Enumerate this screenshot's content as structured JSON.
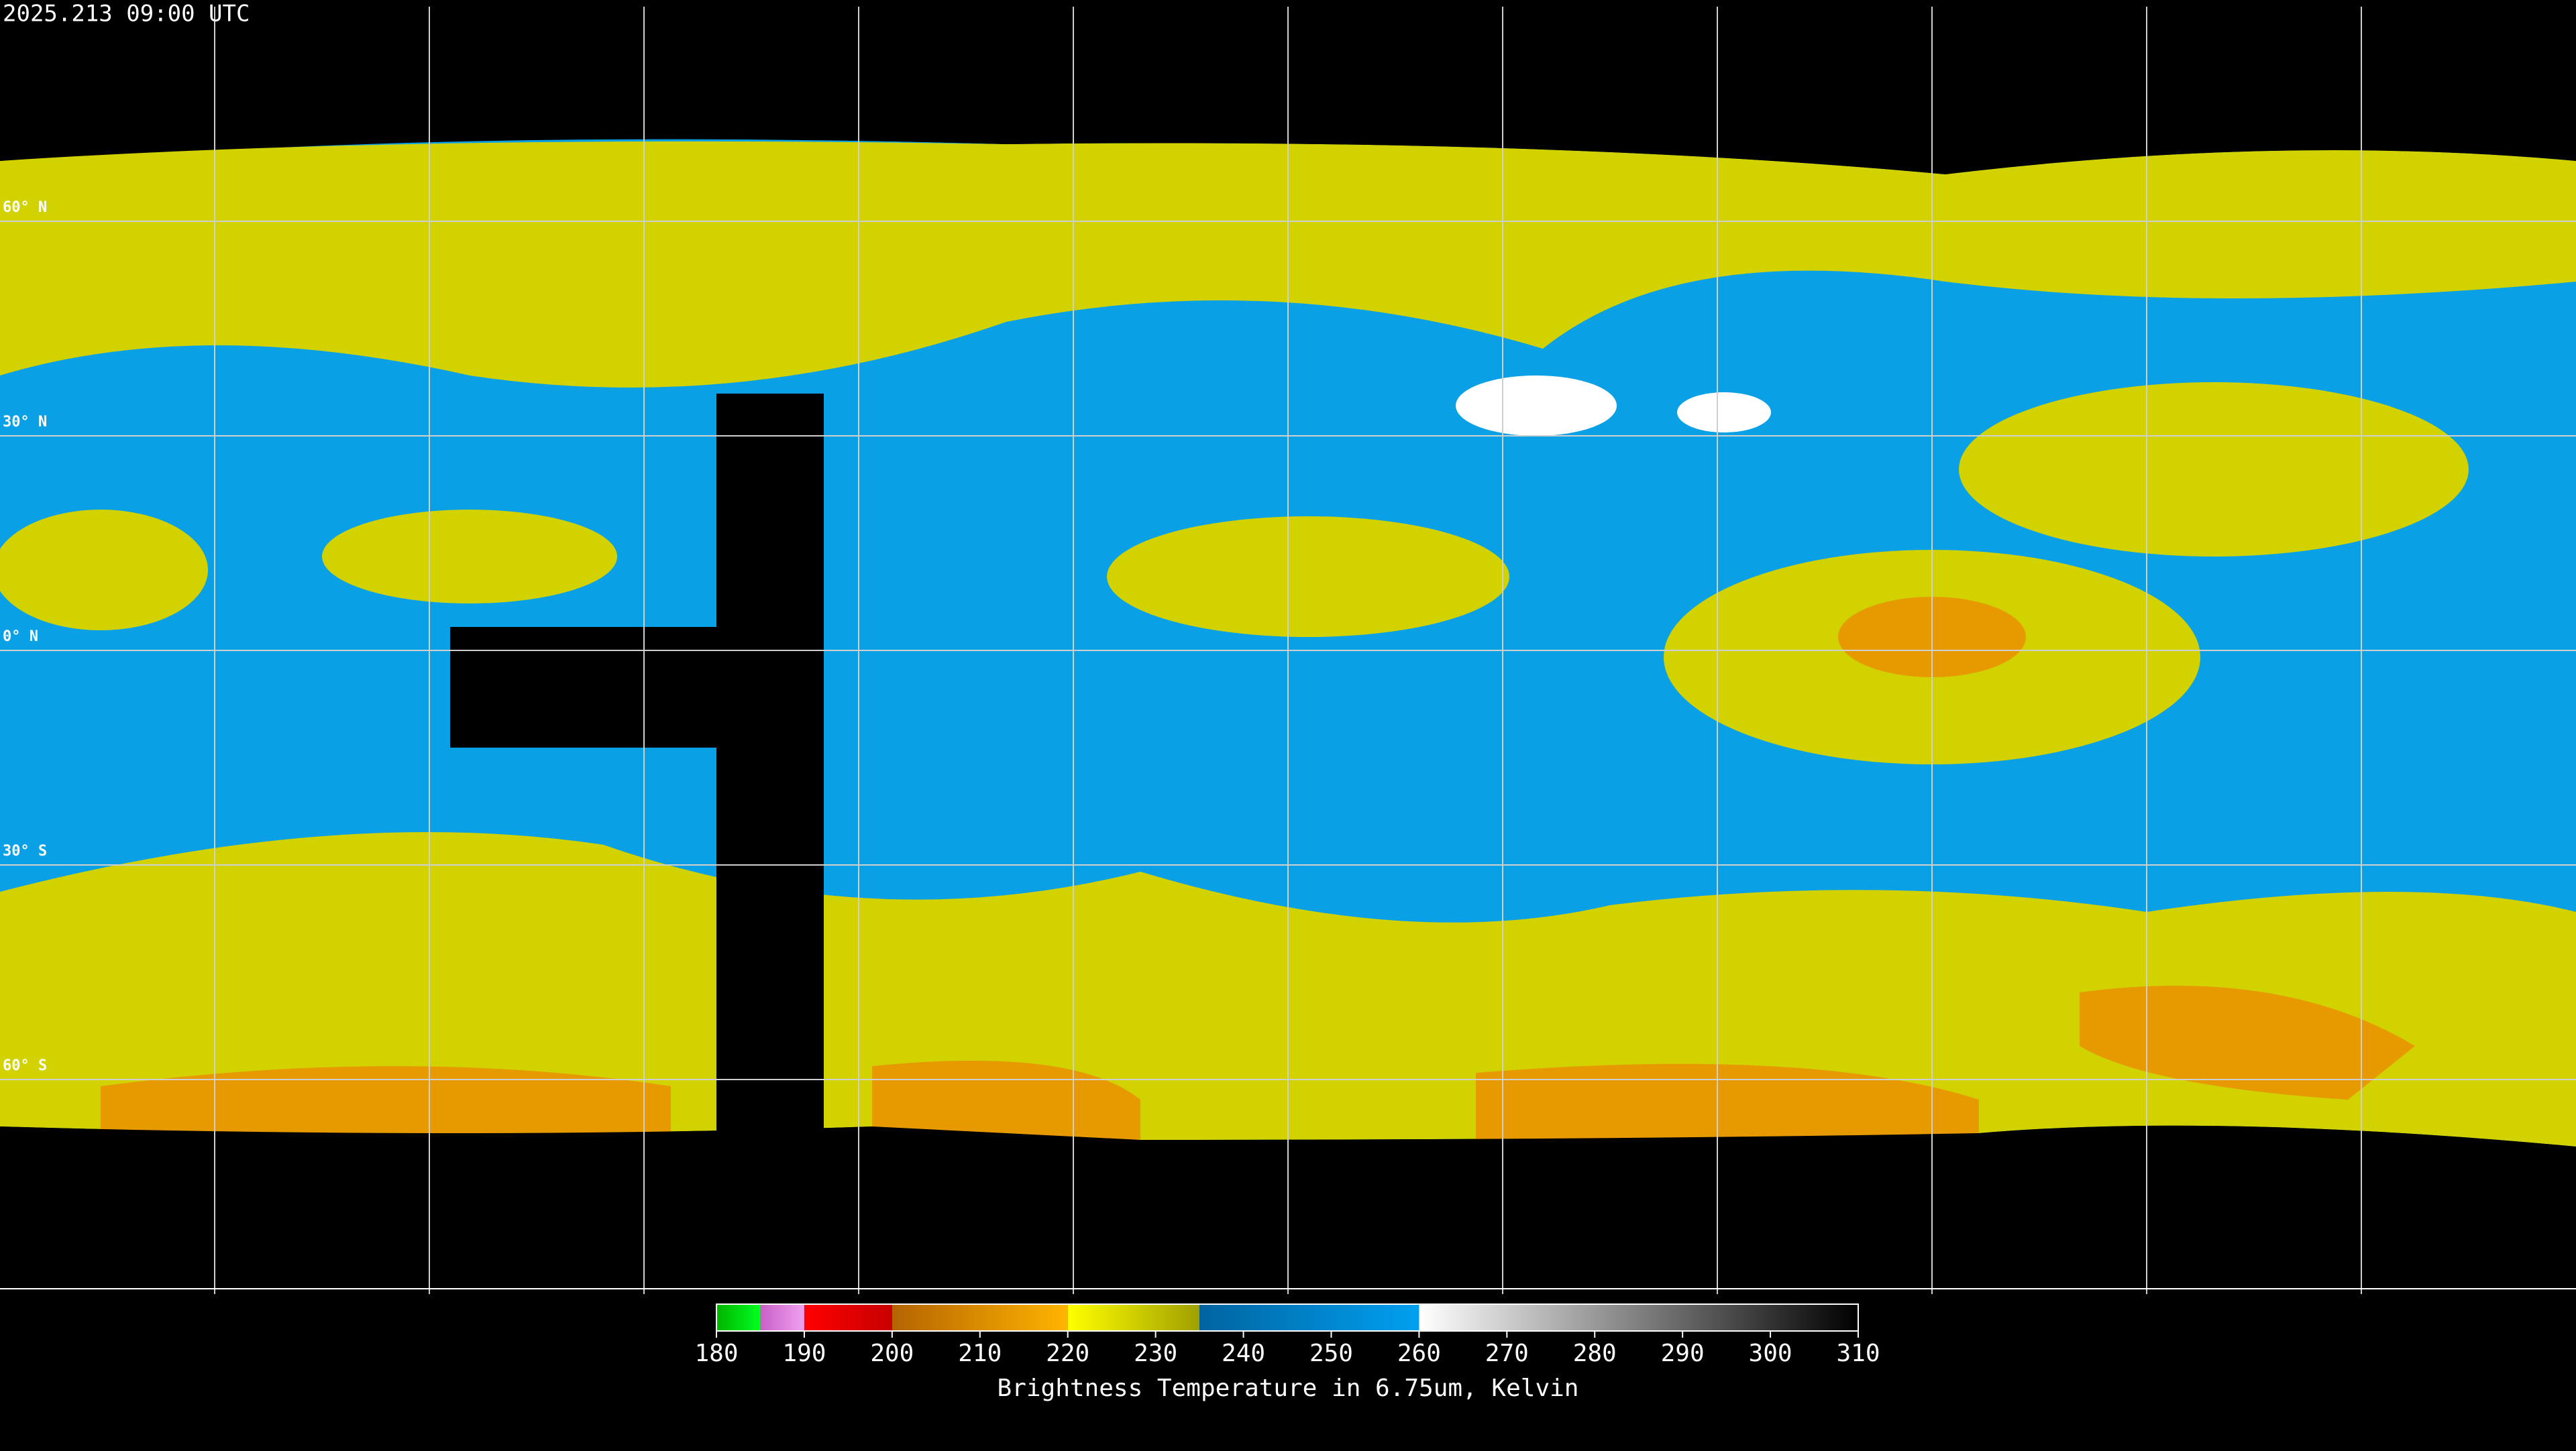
{
  "header": {
    "timestamp": "2025.213 09:00 UTC"
  },
  "map": {
    "latitude_labels": [
      "60° N",
      "30° N",
      "0° N",
      "30° S",
      "60° S"
    ]
  },
  "colorbar": {
    "title": "Brightness Temperature in 6.75um, Kelvin",
    "range": [
      180,
      310
    ],
    "ticks": [
      180,
      190,
      200,
      210,
      220,
      230,
      240,
      250,
      260,
      270,
      280,
      290,
      300,
      310
    ],
    "segments": [
      {
        "from": 180,
        "to": 185,
        "colors": [
          "#00b400",
          "#00ff20"
        ]
      },
      {
        "from": 185,
        "to": 190,
        "colors": [
          "#c860c8",
          "#f0a0f0"
        ]
      },
      {
        "from": 190,
        "to": 200,
        "colors": [
          "#ff0000",
          "#c80000"
        ]
      },
      {
        "from": 200,
        "to": 220,
        "colors": [
          "#b46400",
          "#ffb400"
        ]
      },
      {
        "from": 220,
        "to": 235,
        "colors": [
          "#ffff00",
          "#a0a000"
        ]
      },
      {
        "from": 235,
        "to": 260,
        "colors": [
          "#0064a0",
          "#00a0f0"
        ]
      },
      {
        "from": 260,
        "to": 310,
        "colors": [
          "#ffffff",
          "#000000"
        ]
      }
    ]
  }
}
